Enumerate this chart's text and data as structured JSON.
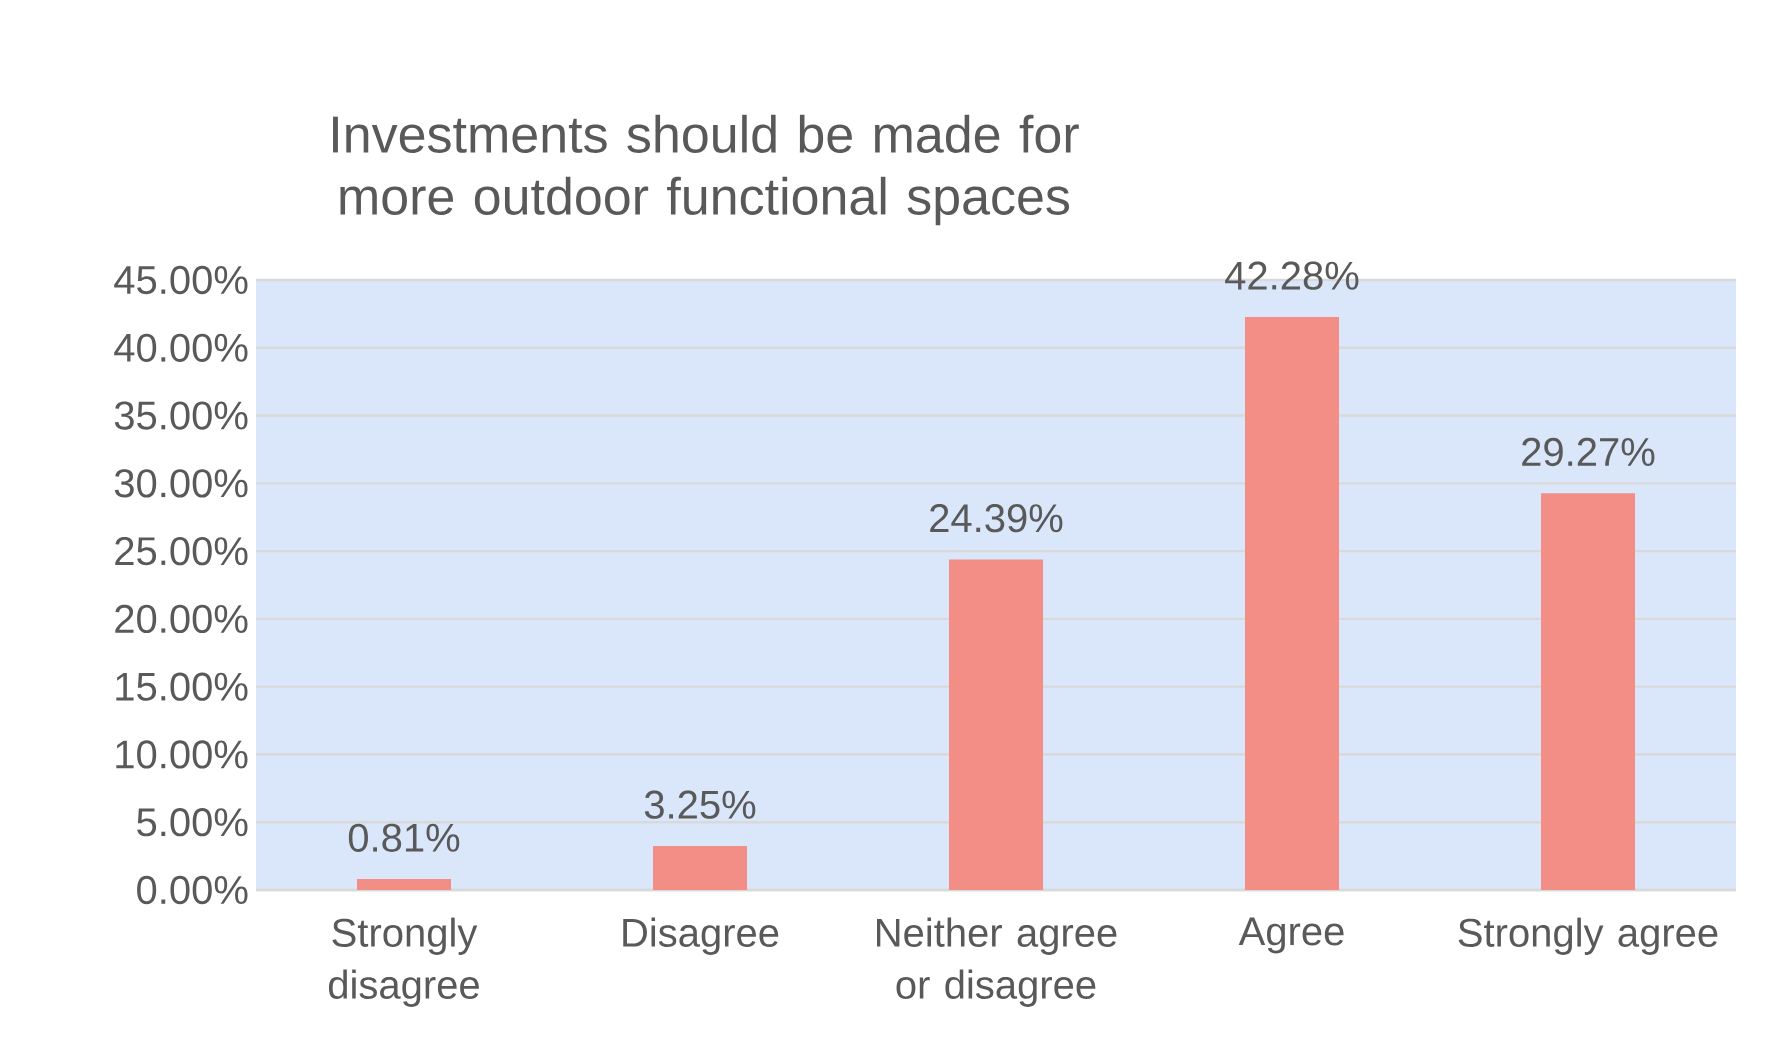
{
  "chart_data": {
    "type": "bar",
    "title": "Investments should be made for more outdoor functional spaces",
    "categories": [
      "Strongly disagree",
      "Disagree",
      "Neither agree or disagree",
      "Agree",
      "Strongly agree"
    ],
    "values": [
      0.81,
      3.25,
      24.39,
      42.28,
      29.27
    ],
    "value_labels": [
      "0.81%",
      "3.25%",
      "24.39%",
      "42.28%",
      "29.27%"
    ],
    "color": "#f28e86",
    "ylim": [
      0,
      45
    ],
    "yticks": [
      {
        "value": 0,
        "label": "0.00%"
      },
      {
        "value": 5,
        "label": "5.00%"
      },
      {
        "value": 10,
        "label": "10.00%"
      },
      {
        "value": 15,
        "label": "15.00%"
      },
      {
        "value": 20,
        "label": "20.00%"
      },
      {
        "value": 25,
        "label": "25.00%"
      },
      {
        "value": 30,
        "label": "30.00%"
      },
      {
        "value": 35,
        "label": "35.00%"
      },
      {
        "value": 40,
        "label": "40.00%"
      },
      {
        "value": 45,
        "label": "45.00%"
      }
    ],
    "grid": "y"
  }
}
